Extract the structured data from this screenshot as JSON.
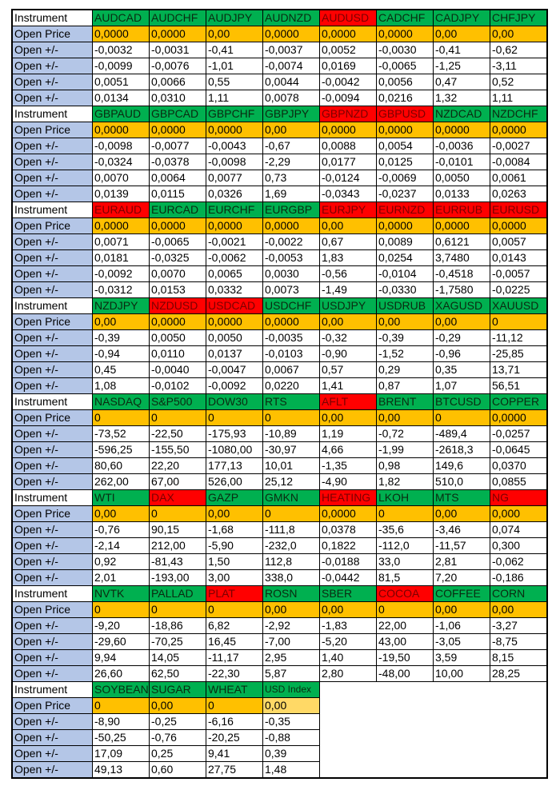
{
  "labels": {
    "instrument": "Instrument",
    "open_price": "Open Price",
    "open_change": "Open +/-"
  },
  "colors": {
    "up": "#00b050",
    "down": "#ff0000",
    "price": "#ffc000",
    "label": "#b4c6e7"
  },
  "blocks": [
    {
      "instruments": [
        {
          "name": "AUDCAD",
          "trend": "green"
        },
        {
          "name": "AUDCHF",
          "trend": "green"
        },
        {
          "name": "AUDJPY",
          "trend": "green"
        },
        {
          "name": "AUDNZD",
          "trend": "green"
        },
        {
          "name": "AUDUSD",
          "trend": "red"
        },
        {
          "name": "CADCHF",
          "trend": "green"
        },
        {
          "name": "CADJPY",
          "trend": "green"
        },
        {
          "name": "CHFJPY",
          "trend": "green"
        }
      ],
      "open_price": [
        "0,0000",
        "0,0000",
        "0,00",
        "0,0000",
        "0,0000",
        "0,0000",
        "0,00",
        "0,00"
      ],
      "rows": [
        [
          "-0,0032",
          "-0,0031",
          "-0,41",
          "-0,0037",
          "0,0052",
          "-0,0030",
          "-0,41",
          "-0,62"
        ],
        [
          "-0,0099",
          "-0,0076",
          "-1,01",
          "-0,0074",
          "0,0169",
          "-0,0065",
          "-1,25",
          "-3,11"
        ],
        [
          "0,0051",
          "0,0066",
          "0,55",
          "0,0044",
          "-0,0042",
          "0,0056",
          "0,47",
          "0,52"
        ],
        [
          "0,0134",
          "0,0310",
          "1,11",
          "0,0078",
          "-0,0094",
          "0,0216",
          "1,32",
          "1,11"
        ]
      ]
    },
    {
      "instruments": [
        {
          "name": "GBPAUD",
          "trend": "green"
        },
        {
          "name": "GBPCAD",
          "trend": "green"
        },
        {
          "name": "GBPCHF",
          "trend": "green"
        },
        {
          "name": "GBPJPY",
          "trend": "green"
        },
        {
          "name": "GBPNZD",
          "trend": "red"
        },
        {
          "name": "GBPUSD",
          "trend": "red"
        },
        {
          "name": "NZDCAD",
          "trend": "green"
        },
        {
          "name": "NZDCHF",
          "trend": "green"
        }
      ],
      "open_price": [
        "0,0000",
        "0,0000",
        "0,0000",
        "0,00",
        "0,0000",
        "0,0000",
        "0,0000",
        "0,0000"
      ],
      "rows": [
        [
          "-0,0098",
          "-0,0077",
          "-0,0043",
          "-0,67",
          "0,0088",
          "0,0054",
          "-0,0036",
          "-0,0027"
        ],
        [
          "-0,0324",
          "-0,0378",
          "-0,0098",
          "-2,29",
          "0,0177",
          "0,0125",
          "-0,0101",
          "-0,0084"
        ],
        [
          "0,0070",
          "0,0064",
          "0,0077",
          "0,73",
          "-0,0124",
          "-0,0069",
          "0,0050",
          "0,0061"
        ],
        [
          "0,0139",
          "0,0115",
          "0,0326",
          "1,69",
          "-0,0343",
          "-0,0237",
          "0,0133",
          "0,0263"
        ]
      ]
    },
    {
      "instruments": [
        {
          "name": "EURAUD",
          "trend": "red"
        },
        {
          "name": "EURCAD",
          "trend": "green"
        },
        {
          "name": "EURCHF",
          "trend": "green"
        },
        {
          "name": "EURGBP",
          "trend": "green"
        },
        {
          "name": "EURJPY",
          "trend": "red"
        },
        {
          "name": "EURNZD",
          "trend": "red"
        },
        {
          "name": "EURRUB",
          "trend": "red"
        },
        {
          "name": "EURUSD",
          "trend": "red"
        }
      ],
      "open_price": [
        "0,0000",
        "0,0000",
        "0,0000",
        "0,0000",
        "0,00",
        "0,0000",
        "0,0000",
        "0,0000"
      ],
      "rows": [
        [
          "0,0071",
          "-0,0065",
          "-0,0021",
          "-0,0022",
          "0,67",
          "0,0089",
          "0,6121",
          "0,0057"
        ],
        [
          "0,0181",
          "-0,0325",
          "-0,0062",
          "-0,0053",
          "1,83",
          "0,0254",
          "3,7480",
          "0,0143"
        ],
        [
          "-0,0092",
          "0,0070",
          "0,0065",
          "0,0030",
          "-0,56",
          "-0,0104",
          "-0,4518",
          "-0,0057"
        ],
        [
          "-0,0312",
          "0,0153",
          "0,0332",
          "0,0073",
          "-1,49",
          "-0,0330",
          "-1,7580",
          "-0,0225"
        ]
      ]
    },
    {
      "instruments": [
        {
          "name": "NZDJPY",
          "trend": "green"
        },
        {
          "name": "NZDUSD",
          "trend": "red"
        },
        {
          "name": "USDCAD",
          "trend": "red"
        },
        {
          "name": "USDCHF",
          "trend": "green"
        },
        {
          "name": "USDJPY",
          "trend": "green"
        },
        {
          "name": "USDRUB",
          "trend": "green"
        },
        {
          "name": "XAGUSD",
          "trend": "green"
        },
        {
          "name": "XAUUSD",
          "trend": "green"
        }
      ],
      "open_price": [
        "0,00",
        "0,0000",
        "0,0000",
        "0,0000",
        "0,00",
        "0,00",
        "0,00",
        "0"
      ],
      "rows": [
        [
          "-0,39",
          "0,0050",
          "0,0050",
          "-0,0035",
          "-0,32",
          "-0,39",
          "-0,29",
          "-11,12"
        ],
        [
          "-0,94",
          "0,0110",
          "0,0137",
          "-0,0103",
          "-0,90",
          "-1,52",
          "-0,96",
          "-25,85"
        ],
        [
          "0,45",
          "-0,0040",
          "-0,0047",
          "0,0067",
          "0,57",
          "0,29",
          "0,35",
          "13,71"
        ],
        [
          "1,08",
          "-0,0102",
          "-0,0092",
          "0,0220",
          "1,41",
          "0,87",
          "1,07",
          "56,51"
        ]
      ]
    },
    {
      "instruments": [
        {
          "name": "NASDAQ",
          "trend": "green"
        },
        {
          "name": "S&P500",
          "trend": "green"
        },
        {
          "name": "DOW30",
          "trend": "green"
        },
        {
          "name": "RTS",
          "trend": "green"
        },
        {
          "name": "AFLT",
          "trend": "red"
        },
        {
          "name": "BRENT",
          "trend": "green"
        },
        {
          "name": "BTCUSD",
          "trend": "green"
        },
        {
          "name": "COPPER",
          "trend": "green"
        }
      ],
      "open_price": [
        "0",
        "0",
        "0",
        "0",
        "0,00",
        "0,00",
        "0",
        "0,0000"
      ],
      "rows": [
        [
          "-73,52",
          "-22,50",
          "-175,93",
          "-10,89",
          "1,19",
          "-0,72",
          "-489,4",
          "-0,0257"
        ],
        [
          "-596,25",
          "-155,50",
          "-1080,00",
          "-30,97",
          "4,66",
          "-1,99",
          "-2618,3",
          "-0,0645"
        ],
        [
          "80,60",
          "22,20",
          "177,13",
          "10,01",
          "-1,35",
          "0,98",
          "149,6",
          "0,0370"
        ],
        [
          "262,00",
          "67,00",
          "526,00",
          "25,12",
          "-4,90",
          "1,82",
          "510,0",
          "0,0855"
        ]
      ]
    },
    {
      "instruments": [
        {
          "name": "WTI",
          "trend": "green"
        },
        {
          "name": "DAX",
          "trend": "red"
        },
        {
          "name": "GAZP",
          "trend": "green"
        },
        {
          "name": "GMKN",
          "trend": "green"
        },
        {
          "name": "HEATING",
          "trend": "red"
        },
        {
          "name": "LKOH",
          "trend": "green"
        },
        {
          "name": "MTS",
          "trend": "green"
        },
        {
          "name": "NG",
          "trend": "red"
        }
      ],
      "open_price": [
        "0,00",
        "0",
        "0,00",
        "0",
        "0,0000",
        "0",
        "0,00",
        "0,000"
      ],
      "rows": [
        [
          "-0,76",
          "90,15",
          "-1,68",
          "-111,8",
          "0,0378",
          "-35,6",
          "-3,46",
          "0,074"
        ],
        [
          "-2,14",
          "212,00",
          "-5,90",
          "-232,0",
          "0,1822",
          "-112,0",
          "-11,57",
          "0,300"
        ],
        [
          "0,92",
          "-81,43",
          "1,50",
          "112,8",
          "-0,0188",
          "33,0",
          "2,81",
          "-0,062"
        ],
        [
          "2,01",
          "-193,00",
          "3,00",
          "338,0",
          "-0,0442",
          "81,5",
          "7,20",
          "-0,186"
        ]
      ]
    },
    {
      "instruments": [
        {
          "name": "NVTK",
          "trend": "green"
        },
        {
          "name": "PALLAD",
          "trend": "green"
        },
        {
          "name": "PLAT",
          "trend": "red"
        },
        {
          "name": "ROSN",
          "trend": "green"
        },
        {
          "name": "SBER",
          "trend": "green"
        },
        {
          "name": "COCOA",
          "trend": "red"
        },
        {
          "name": "COFFEE",
          "trend": "green"
        },
        {
          "name": "CORN",
          "trend": "green"
        }
      ],
      "open_price": [
        "0",
        "0",
        "0",
        "0,00",
        "0,00",
        "0",
        "0,00",
        "0,00"
      ],
      "rows": [
        [
          "-9,20",
          "-18,86",
          "6,82",
          "-2,92",
          "-1,83",
          "22,00",
          "-1,06",
          "-3,27"
        ],
        [
          "-29,60",
          "-70,25",
          "16,45",
          "-7,00",
          "-5,20",
          "43,00",
          "-3,05",
          "-8,75"
        ],
        [
          "9,94",
          "14,05",
          "-11,17",
          "2,95",
          "1,40",
          "-19,50",
          "3,59",
          "8,15"
        ],
        [
          "26,60",
          "62,50",
          "-22,30",
          "5,87",
          "2,80",
          "-48,00",
          "10,00",
          "28,25"
        ]
      ]
    },
    {
      "instruments": [
        {
          "name": "SOYBEAN",
          "trend": "green"
        },
        {
          "name": "SUGAR",
          "trend": "green"
        },
        {
          "name": "WHEAT",
          "trend": "green"
        },
        {
          "name": "USD Index",
          "trend": "green"
        }
      ],
      "open_price": [
        "0",
        "0,00",
        "0",
        "0,00"
      ],
      "rows": [
        [
          "-8,90",
          "-0,25",
          "-6,16",
          "-0,35"
        ],
        [
          "-50,25",
          "-0,76",
          "-20,25",
          "-0,88"
        ],
        [
          "17,09",
          "0,25",
          "9,41",
          "0,39"
        ],
        [
          "49,13",
          "0,60",
          "27,75",
          "1,48"
        ]
      ]
    }
  ]
}
